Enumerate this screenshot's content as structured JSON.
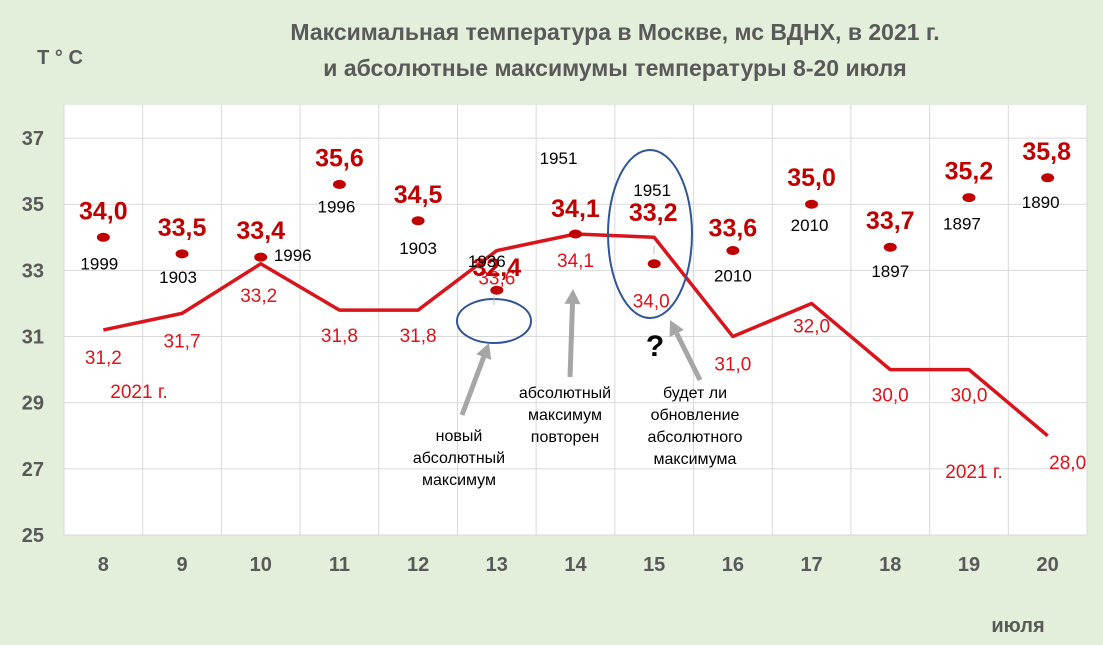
{
  "title_line1": "Максимальная температура  в Москве, мс ВДНХ, в 2021 г.",
  "title_line2": "и абсолютные максимумы температуры 8-20 июля",
  "chart_data": {
    "type": "line",
    "ylabel": "Т ° С",
    "xlabel": "июля",
    "ylim": [
      25,
      38
    ],
    "yticks": [
      "25",
      "27",
      "29",
      "31",
      "33",
      "35",
      "37"
    ],
    "categories": [
      "8",
      "9",
      "10",
      "11",
      "12",
      "13",
      "14",
      "15",
      "16",
      "17",
      "18",
      "19",
      "20"
    ],
    "series": [
      {
        "name": "2021 г.",
        "color": "#d9141b",
        "values": [
          31.2,
          31.7,
          33.2,
          31.8,
          31.8,
          33.6,
          34.1,
          34.0,
          31.0,
          32.0,
          30.0,
          30.0,
          28.0
        ],
        "labels": [
          "31,2",
          "31,7",
          "33,2",
          "31,8",
          "31,8",
          "33,6",
          "34,1",
          "34,0",
          "31,0",
          "32,0",
          "30,0",
          "30,0",
          "28,0"
        ]
      },
      {
        "name": "абсолютные максимумы",
        "color": "#c00000",
        "values": [
          34.0,
          33.5,
          33.4,
          35.6,
          34.5,
          32.4,
          34.1,
          33.2,
          33.6,
          35.0,
          33.7,
          35.2,
          35.8
        ],
        "labels": [
          "34,0",
          "33,5",
          "33,4",
          "35,6",
          "34,5",
          "32,4",
          "34,1",
          "33,2",
          "33,6",
          "35,0",
          "33,7",
          "35,2",
          "35,8"
        ],
        "years": [
          "1999",
          "1903",
          "1996",
          "1996",
          "1903",
          "1936",
          "1951",
          "1951",
          "2010",
          "2010",
          "1897",
          "1897",
          "1890"
        ]
      }
    ],
    "series_labels": [
      "2021 г.",
      "2021 г."
    ],
    "annotations": [
      {
        "text": [
          "новый",
          "абсолютный",
          "максимум"
        ]
      },
      {
        "text": [
          "абсолютный",
          "максимум",
          "повторен"
        ]
      },
      {
        "text": [
          "будет ли",
          "обновление",
          "абсолютного",
          "максимума"
        ]
      },
      {
        "text": [
          "?"
        ]
      }
    ],
    "grid": true,
    "colors": {
      "background": "#e3eedb",
      "plot": "#ffffff",
      "grid": "#d9d9d9",
      "line": "#d9141b",
      "marker": "#c00000",
      "circle": "#2f5597",
      "arrow": "#a6a6a6",
      "axis_text": "#595959"
    }
  }
}
